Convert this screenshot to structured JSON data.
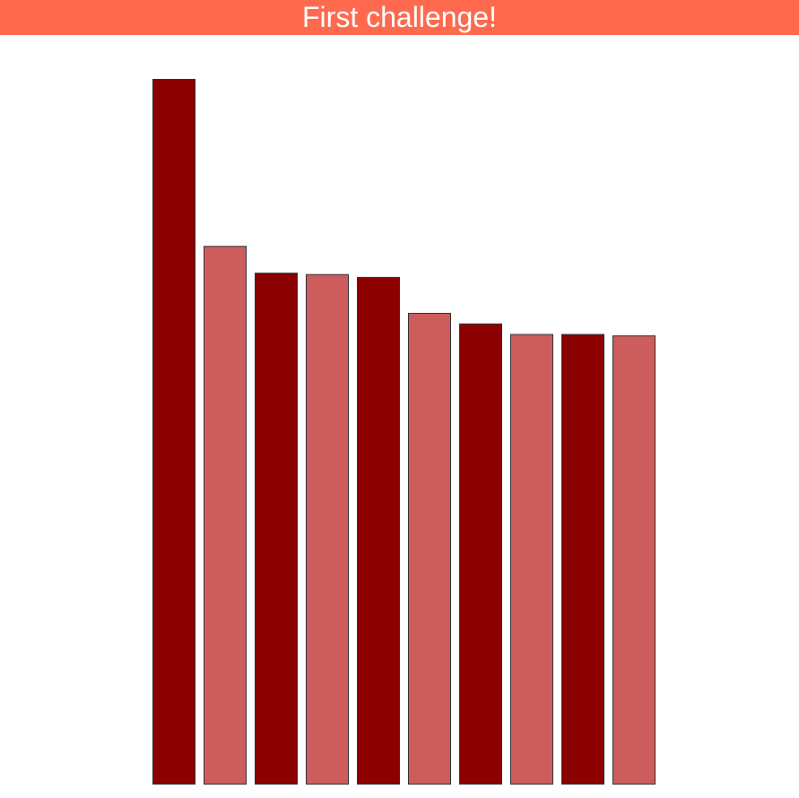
{
  "header": {
    "title": "First challenge!",
    "background_color": "#FF6A4F",
    "text_color": "#FFFFFF"
  },
  "chart_data": {
    "type": "bar",
    "categories": [
      "",
      "",
      "",
      "",
      "",
      "",
      "",
      "",
      "",
      ""
    ],
    "values": [
      100,
      76.3,
      72.5,
      72.3,
      71.9,
      66.8,
      65.3,
      63.8,
      63.8,
      63.6
    ],
    "ylim": [
      0,
      100
    ],
    "colors": [
      "#8B0000",
      "#CD5C5C",
      "#8B0000",
      "#CD5C5C",
      "#8B0000",
      "#CD5C5C",
      "#8B0000",
      "#CD5C5C",
      "#8B0000",
      "#CD5C5C"
    ],
    "bar_stroke": "#333333",
    "grid": false,
    "axes_visible": false
  }
}
